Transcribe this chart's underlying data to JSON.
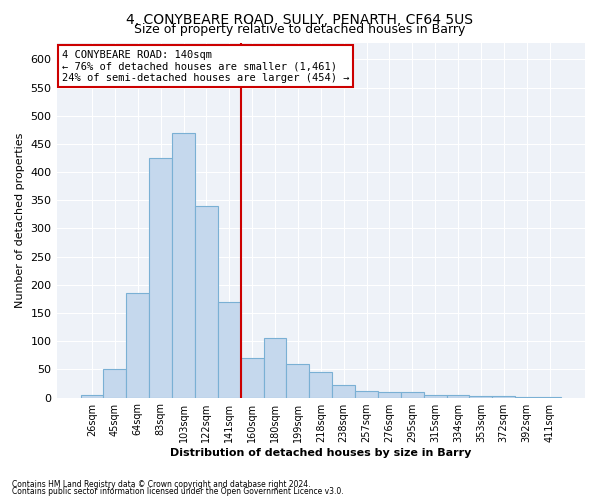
{
  "title1": "4, CONYBEARE ROAD, SULLY, PENARTH, CF64 5US",
  "title2": "Size of property relative to detached houses in Barry",
  "xlabel": "Distribution of detached houses by size in Barry",
  "ylabel": "Number of detached properties",
  "categories": [
    "26sqm",
    "45sqm",
    "64sqm",
    "83sqm",
    "103sqm",
    "122sqm",
    "141sqm",
    "160sqm",
    "180sqm",
    "199sqm",
    "218sqm",
    "238sqm",
    "257sqm",
    "276sqm",
    "295sqm",
    "315sqm",
    "334sqm",
    "353sqm",
    "372sqm",
    "392sqm",
    "411sqm"
  ],
  "values": [
    5,
    50,
    185,
    425,
    470,
    340,
    170,
    70,
    105,
    60,
    45,
    22,
    12,
    10,
    10,
    5,
    5,
    2,
    2,
    1,
    1
  ],
  "bar_color": "#c5d8ed",
  "bar_edge_color": "#7ab0d4",
  "vline_color": "#cc0000",
  "annotation_text": "4 CONYBEARE ROAD: 140sqm\n← 76% of detached houses are smaller (1,461)\n24% of semi-detached houses are larger (454) →",
  "annotation_box_color": "#ffffff",
  "annotation_box_edge": "#cc0000",
  "ylim": [
    0,
    630
  ],
  "yticks": [
    0,
    50,
    100,
    150,
    200,
    250,
    300,
    350,
    400,
    450,
    500,
    550,
    600
  ],
  "footer1": "Contains HM Land Registry data © Crown copyright and database right 2024.",
  "footer2": "Contains public sector information licensed under the Open Government Licence v3.0.",
  "bg_color": "#eef2f8",
  "title1_fontsize": 10,
  "title2_fontsize": 9
}
